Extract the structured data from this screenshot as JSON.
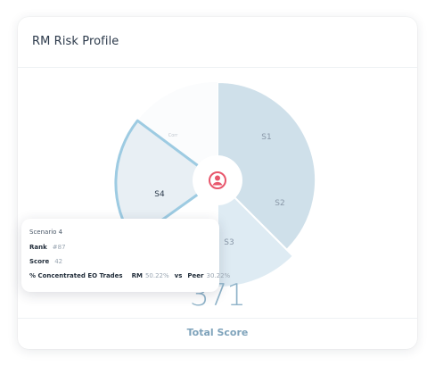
{
  "card": {
    "title": "RM Risk Profile"
  },
  "chart_data": {
    "type": "polar-area",
    "segments": [
      {
        "name": "S1",
        "active": false
      },
      {
        "name": "S2",
        "active": false
      },
      {
        "name": "S3",
        "active": false
      },
      {
        "name": "S4",
        "active": true
      },
      {
        "name": "Corr",
        "active": false
      }
    ],
    "center_icon": "user-icon",
    "colors": {
      "s1_s2": "#cfe0ea",
      "s3": "#deebf3",
      "s4_fill": "#e8eff4",
      "s4_stroke": "#9dcbe2",
      "center_icon": "#e8576c"
    }
  },
  "total": {
    "value": "371",
    "label": "Total Score"
  },
  "tooltip": {
    "title": "Scenario 4",
    "rank_label": "Rank",
    "rank_value": "#87",
    "score_label": "Score",
    "score_value": "42",
    "metric_label": "% Concentrated EO Trades",
    "rm_label": "RM",
    "rm_value": "50.22%",
    "vs_label": "vs",
    "peer_label": "Peer",
    "peer_value": "30.22%"
  }
}
